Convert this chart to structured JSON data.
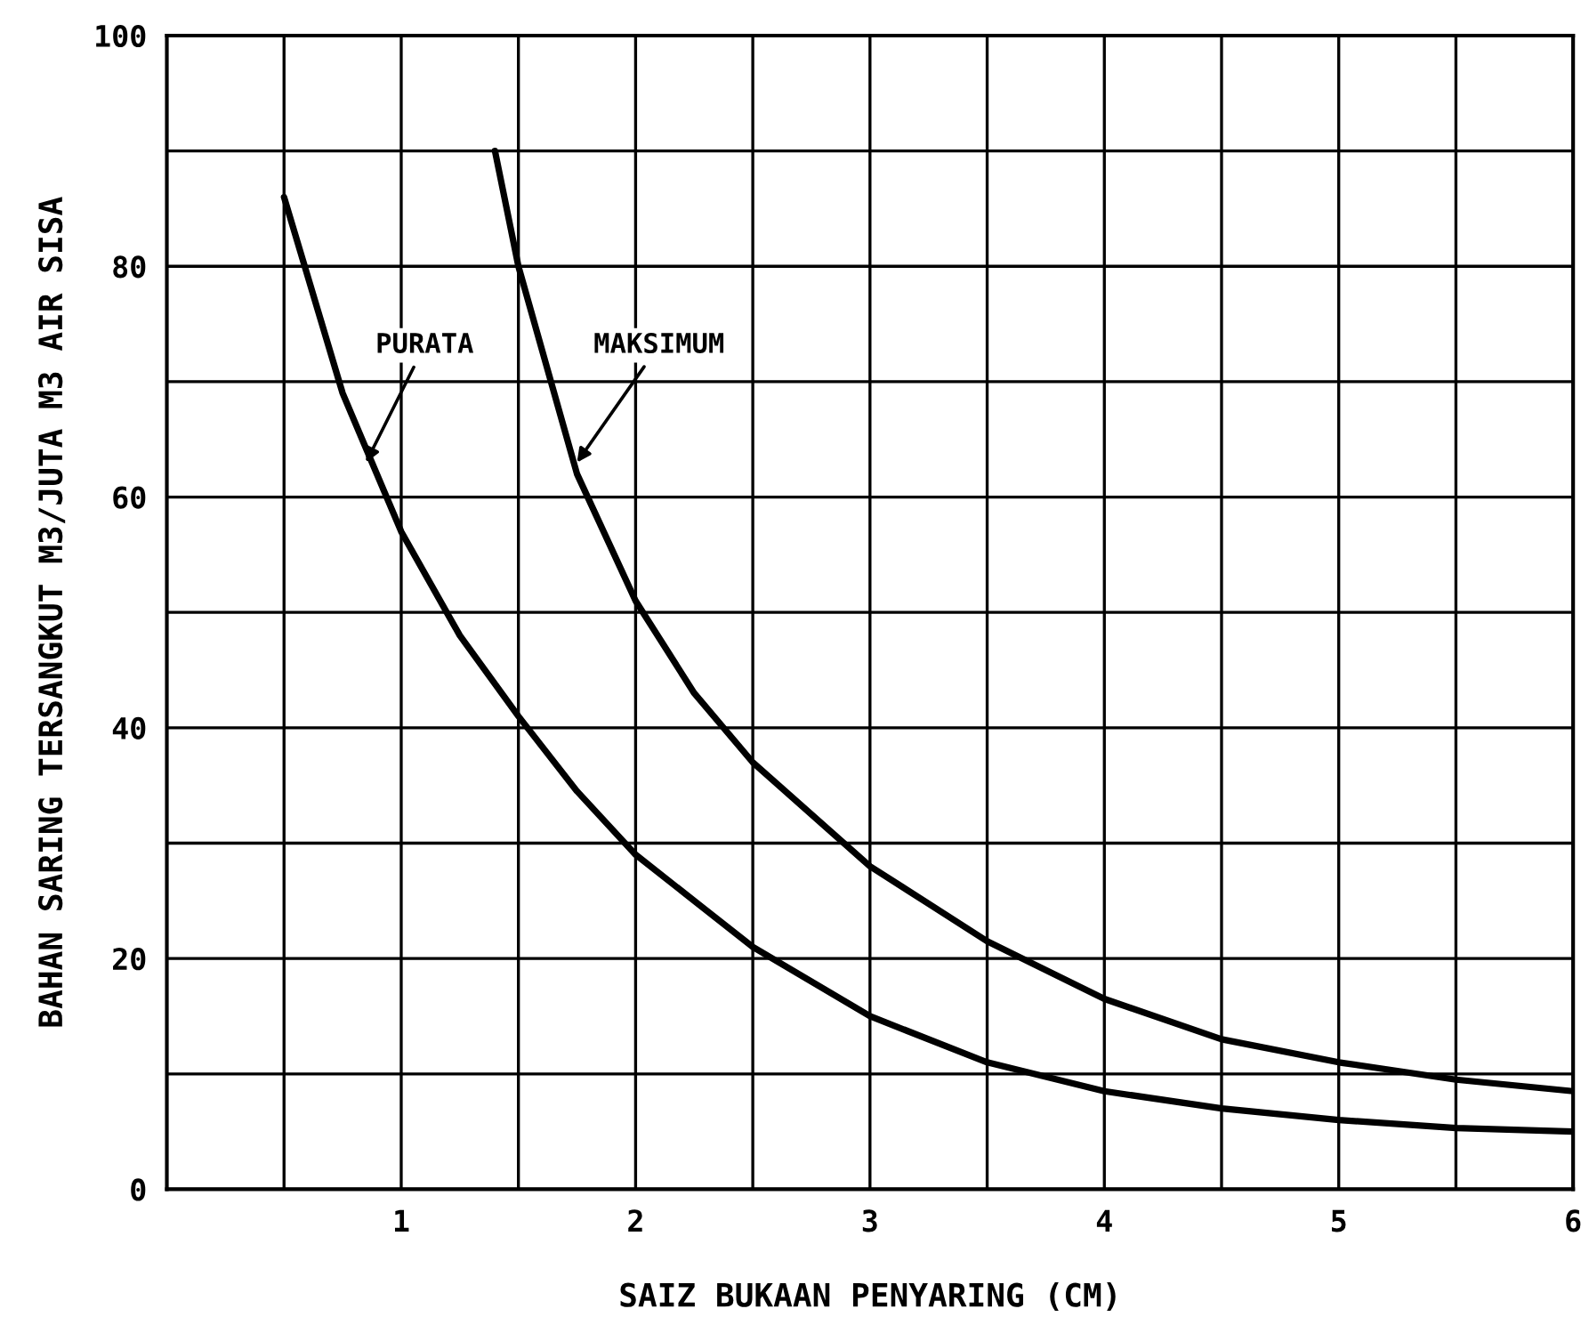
{
  "chart_data": {
    "type": "line",
    "xlabel": "SAIZ BUKAAN PENYARING (CM)",
    "ylabel": "BAHAN SARING TERSANGKUT M3/JUTA M3 AIR SISA",
    "series": [
      {
        "color": "#000000",
        "x": [
          0.5,
          0.75,
          1,
          1.25,
          1.5,
          1.75,
          2,
          2.5,
          3,
          3.5,
          4,
          4.5,
          5,
          5.5,
          6
        ],
        "values": [
          86,
          69,
          57,
          48,
          41,
          34.5,
          29,
          21,
          15,
          11,
          8.5,
          7,
          6,
          5.3,
          5
        ]
      },
      {
        "color": "#000000",
        "x": [
          1.4,
          1.5,
          1.75,
          2,
          2.25,
          2.5,
          3,
          3.5,
          4,
          4.5,
          5,
          5.5,
          6
        ],
        "values": [
          90,
          80,
          62,
          51,
          43,
          37,
          28,
          21.5,
          16.5,
          13,
          11,
          9.5,
          8.5
        ]
      }
    ],
    "annotations": [
      {
        "text": "PURATA",
        "x": 0.85,
        "y": 63
      },
      {
        "text": "MAKSIMUM",
        "x": 1.75,
        "y": 63
      }
    ],
    "xlim": [
      0,
      6
    ],
    "ylim": [
      0,
      100
    ],
    "xticks": [
      {
        "value": 0.5,
        "label": null
      },
      1,
      {
        "value": 1.5,
        "label": null
      },
      2,
      {
        "value": 2.5,
        "label": null
      },
      3,
      {
        "value": 3.5,
        "label": null
      },
      4,
      {
        "value": 4.5,
        "label": null
      },
      5,
      {
        "value": 5.5,
        "label": null
      },
      6
    ],
    "yticks": [
      0,
      {
        "value": 10,
        "label": null
      },
      20,
      {
        "value": 30,
        "label": null
      },
      40,
      {
        "value": 50,
        "label": null
      },
      60,
      {
        "value": 70,
        "label": null
      },
      80,
      {
        "value": 90,
        "label": null
      },
      100
    ],
    "grid": true,
    "line_style": "solid"
  }
}
